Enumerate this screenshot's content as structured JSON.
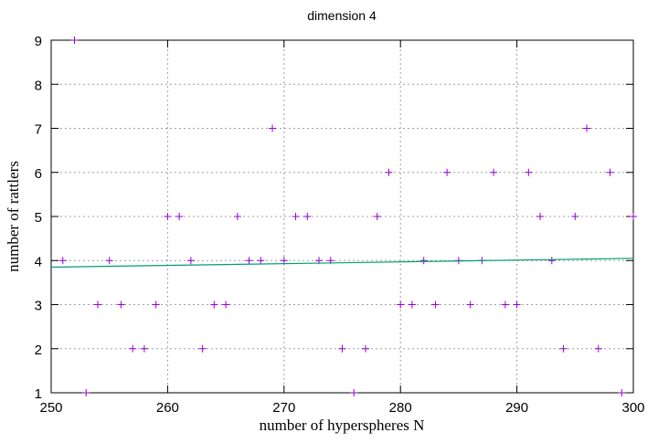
{
  "chart_data": {
    "type": "scatter",
    "title": "dimension 4",
    "x_label": "number of hyperspheres N",
    "y_label": "number of rattlers",
    "xlim": [
      250,
      300
    ],
    "ylim": [
      1,
      9
    ],
    "xticks": [
      250,
      260,
      270,
      280,
      290,
      300
    ],
    "yticks": [
      1,
      2,
      3,
      4,
      5,
      6,
      7,
      8,
      9
    ],
    "grid": true,
    "series": [
      {
        "type": "scatter",
        "color": "#9400d3",
        "x": [
          251,
          252,
          253,
          254,
          255,
          256,
          257,
          258,
          259,
          260,
          261,
          262,
          263,
          264,
          265,
          266,
          267,
          268,
          269,
          270,
          271,
          272,
          273,
          274,
          275,
          276,
          277,
          278,
          279,
          280,
          281,
          282,
          283,
          284,
          285,
          286,
          287,
          288,
          289,
          290,
          291,
          292,
          293,
          294,
          295,
          296,
          297,
          298,
          299,
          300
        ],
        "values": [
          4,
          9,
          1,
          3,
          4,
          3,
          2,
          2,
          3,
          5,
          5,
          4,
          2,
          3,
          3,
          5,
          4,
          4,
          7,
          4,
          5,
          5,
          4,
          4,
          2,
          1,
          2,
          5,
          6,
          3,
          3,
          4,
          3,
          6,
          4,
          3,
          4,
          6,
          3,
          3,
          6,
          5,
          4,
          2,
          5,
          7,
          2,
          6,
          1,
          5
        ]
      },
      {
        "type": "line",
        "color": "#009e73",
        "x": [
          250,
          300
        ],
        "values": [
          3.85,
          4.05
        ]
      }
    ]
  }
}
